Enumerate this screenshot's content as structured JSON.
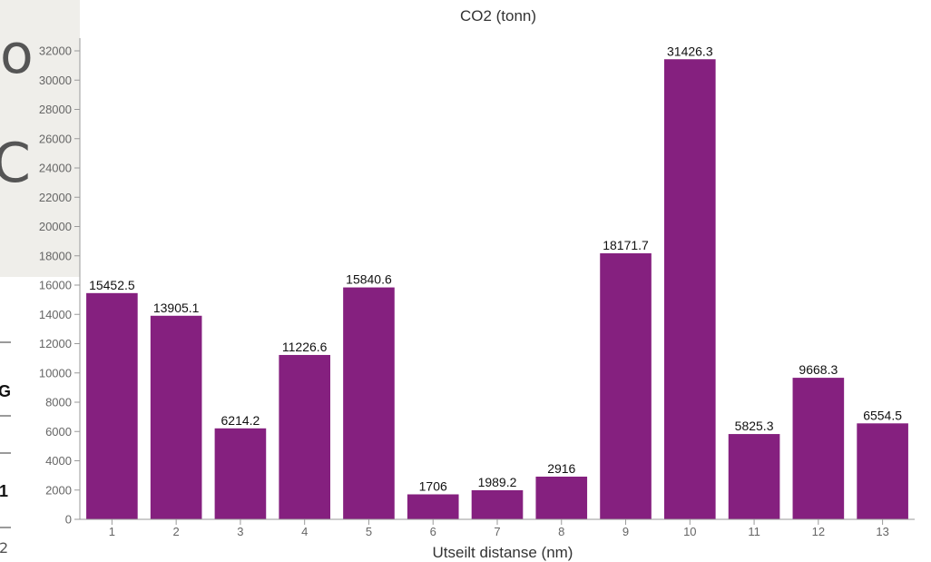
{
  "page": {
    "left_fragments": [
      "o",
      "C",
      "G",
      "1",
      "2"
    ]
  },
  "chart_data": {
    "type": "bar",
    "title": "CO2 (tonn)",
    "xlabel": "Utseilt distanse (nm)",
    "ylabel": "",
    "categories": [
      "1",
      "2",
      "3",
      "4",
      "5",
      "6",
      "7",
      "8",
      "9",
      "10",
      "11",
      "12",
      "13"
    ],
    "values": [
      15452.5,
      13905.1,
      6214.2,
      11226.6,
      15840.6,
      1706,
      1989.2,
      2916,
      18171.7,
      31426.3,
      5825.3,
      9668.3,
      6554.5
    ],
    "data_labels": [
      "15452.5",
      "13905.1",
      "6214.2",
      "11226.6",
      "15840.6",
      "1706",
      "1989.2",
      "2916",
      "18171.7",
      "31426.3",
      "5825.3",
      "9668.3",
      "6554.5"
    ],
    "ylim": [
      0,
      32000
    ],
    "yticks": [
      0,
      2000,
      4000,
      6000,
      8000,
      10000,
      12000,
      14000,
      16000,
      18000,
      20000,
      22000,
      24000,
      26000,
      28000,
      30000,
      32000
    ],
    "ytick_labels": [
      "0",
      "2000",
      "4000",
      "6000",
      "8000",
      "10000",
      "12000",
      "14000",
      "16000",
      "18000",
      "20000",
      "22000",
      "24000",
      "26000",
      "28000",
      "30000",
      "32000"
    ],
    "bar_color": "#85207f",
    "grid": false,
    "legend": "none"
  }
}
